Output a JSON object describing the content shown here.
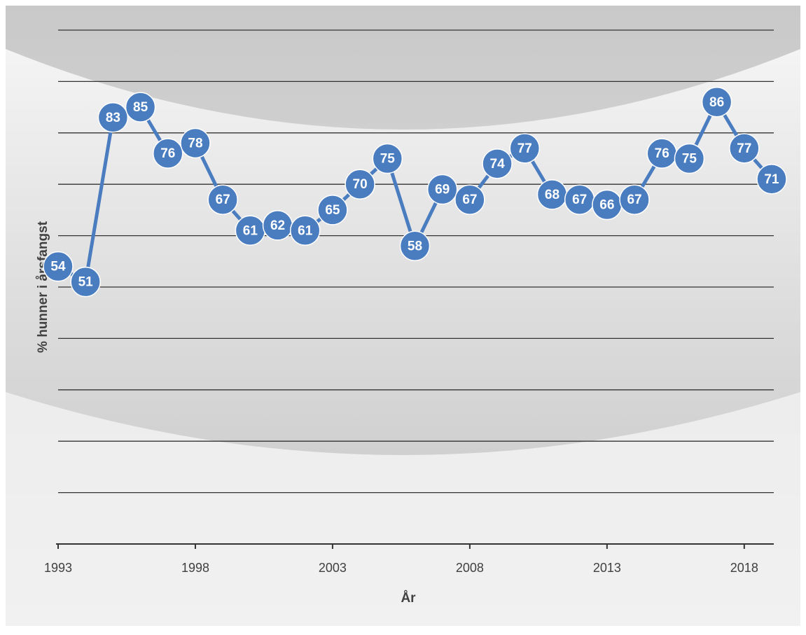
{
  "chart_data": {
    "type": "line",
    "x_label": "År",
    "y_label": "% hunner i årsfangst",
    "x": [
      1993,
      1994,
      1995,
      1996,
      1997,
      1998,
      1999,
      2000,
      2001,
      2002,
      2003,
      2004,
      2005,
      2006,
      2007,
      2008,
      2009,
      2010,
      2011,
      2012,
      2013,
      2014,
      2015,
      2016,
      2017,
      2018,
      2019
    ],
    "values": [
      54,
      51,
      83,
      85,
      76,
      78,
      67,
      61,
      62,
      61,
      65,
      70,
      75,
      58,
      69,
      67,
      74,
      77,
      68,
      67,
      66,
      67,
      76,
      75,
      86,
      77,
      71
    ],
    "color": "#4a7cc0",
    "xlim": [
      1993,
      2019
    ],
    "xticks": [
      1993,
      1998,
      2003,
      2008,
      2013,
      2018
    ],
    "ylim": [
      0,
      100
    ],
    "yticks": [
      0,
      10,
      20,
      30,
      40,
      50,
      60,
      70,
      80,
      90,
      100
    ],
    "grid": true
  }
}
